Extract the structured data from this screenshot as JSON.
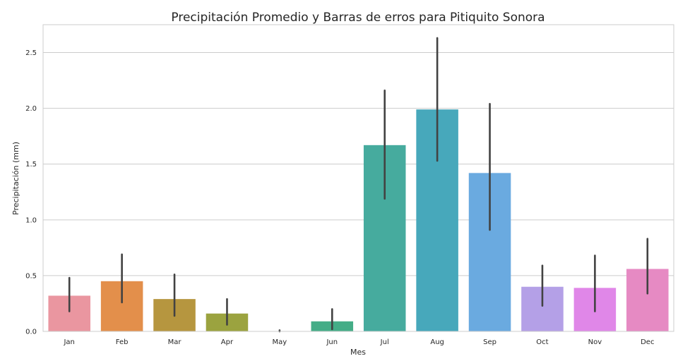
{
  "chart_data": {
    "type": "bar",
    "title": "Precipitación Promedio y Barras de erros para Pitiquito Sonora",
    "xlabel": "Mes",
    "ylabel": "Precipitación (mm)",
    "ylim": [
      0,
      2.75
    ],
    "yticks": [
      "0.0",
      "0.5",
      "1.0",
      "1.5",
      "2.0",
      "2.5"
    ],
    "grid": "horizontal",
    "categories": [
      "Jan",
      "Feb",
      "Mar",
      "Apr",
      "May",
      "Jun",
      "Jul",
      "Aug",
      "Sep",
      "Oct",
      "Nov",
      "Dec"
    ],
    "values": [
      0.32,
      0.45,
      0.29,
      0.16,
      0.0,
      0.09,
      1.67,
      1.99,
      1.42,
      0.4,
      0.39,
      0.56
    ],
    "error_low": [
      0.18,
      0.26,
      0.14,
      0.06,
      0.0,
      0.02,
      1.19,
      1.53,
      0.91,
      0.23,
      0.18,
      0.34
    ],
    "error_high": [
      0.48,
      0.69,
      0.51,
      0.29,
      0.01,
      0.2,
      2.16,
      2.63,
      2.04,
      0.59,
      0.68,
      0.83
    ],
    "colors": [
      "#ea96a0",
      "#e38f4b",
      "#b6963f",
      "#9ba33f",
      "#57ad45",
      "#44ad87",
      "#46ab9e",
      "#47a8bb",
      "#6aaae0",
      "#b4a0e7",
      "#e087e8",
      "#e68ac3"
    ],
    "error_color": "#424242",
    "grid_color": "#cccccc",
    "frame_color": "#cccccc"
  }
}
